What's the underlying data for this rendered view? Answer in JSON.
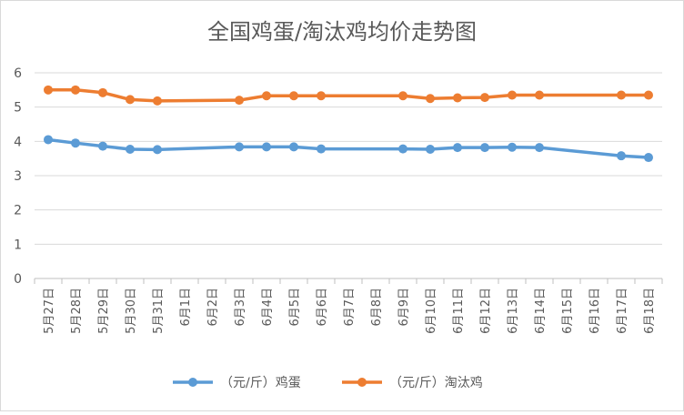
{
  "chart_data": {
    "type": "line",
    "title": "全国鸡蛋/淘汰鸡均价走势图",
    "categories": [
      "5月27日",
      "5月28日",
      "5月29日",
      "5月30日",
      "5月31日",
      "6月1日",
      "6月2日",
      "6月3日",
      "6月4日",
      "6月5日",
      "6月6日",
      "6月7日",
      "6月8日",
      "6月9日",
      "6月10日",
      "6月11日",
      "6月12日",
      "6月13日",
      "6月14日",
      "6月15日",
      "6月16日",
      "6月17日",
      "6月18日"
    ],
    "ylim": [
      0,
      6
    ],
    "yticks": [
      0,
      1,
      2,
      3,
      4,
      5,
      6
    ],
    "grid": true,
    "legend_position": "bottom",
    "series": [
      {
        "name": "（元/斤）鸡蛋",
        "color": "#5B9BD5",
        "values": [
          4.05,
          3.95,
          3.86,
          3.77,
          3.76,
          null,
          null,
          3.84,
          3.84,
          3.84,
          3.78,
          null,
          null,
          3.78,
          3.77,
          3.82,
          3.82,
          3.83,
          3.82,
          null,
          null,
          3.58,
          3.53
        ]
      },
      {
        "name": "（元/斤）淘汰鸡",
        "color": "#ED7D31",
        "values": [
          5.5,
          5.5,
          5.42,
          5.22,
          5.18,
          null,
          null,
          5.2,
          5.33,
          5.33,
          5.33,
          null,
          null,
          5.33,
          5.25,
          5.27,
          5.28,
          5.35,
          5.35,
          null,
          null,
          5.35,
          5.35
        ]
      }
    ]
  }
}
